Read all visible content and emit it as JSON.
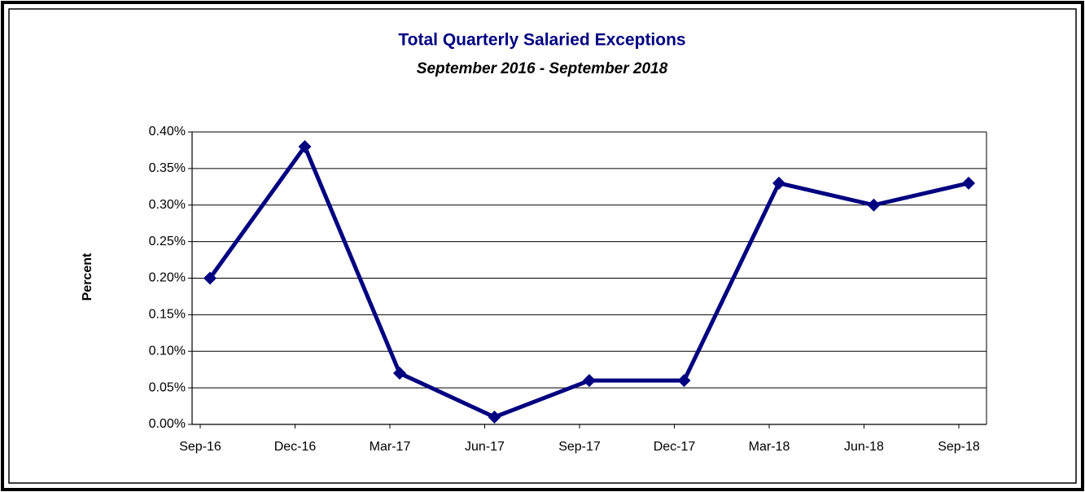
{
  "chart_data": {
    "type": "line",
    "title": "Total Quarterly Salaried Exceptions",
    "subtitle": "September 2016 - September 2018",
    "y_label": "Percent",
    "categories": [
      "Sep-16",
      "Dec-16",
      "Mar-17",
      "Jun-17",
      "Sep-17",
      "Dec-17",
      "Mar-18",
      "Jun-18",
      "Sep-18"
    ],
    "series": [
      {
        "name": "Total Quarterly Salaried Exceptions",
        "color": "#000080",
        "values": [
          0.2,
          0.38,
          0.07,
          0.01,
          0.06,
          0.06,
          0.33,
          0.3,
          0.33
        ]
      }
    ],
    "ylim": [
      0,
      0.4
    ],
    "yticks": [
      {
        "value": 0,
        "label": "0.00%"
      },
      {
        "value": 0.05,
        "label": "0.05%"
      },
      {
        "value": 0.1,
        "label": "0.10%"
      },
      {
        "value": 0.15,
        "label": "0.15%"
      },
      {
        "value": 0.2,
        "label": "0.20%"
      },
      {
        "value": 0.25,
        "label": "0.25%"
      },
      {
        "value": 0.3,
        "label": "0.30%"
      },
      {
        "value": 0.35,
        "label": "0.35%"
      },
      {
        "value": 0.4,
        "label": "0.40%"
      }
    ],
    "grid": true
  }
}
